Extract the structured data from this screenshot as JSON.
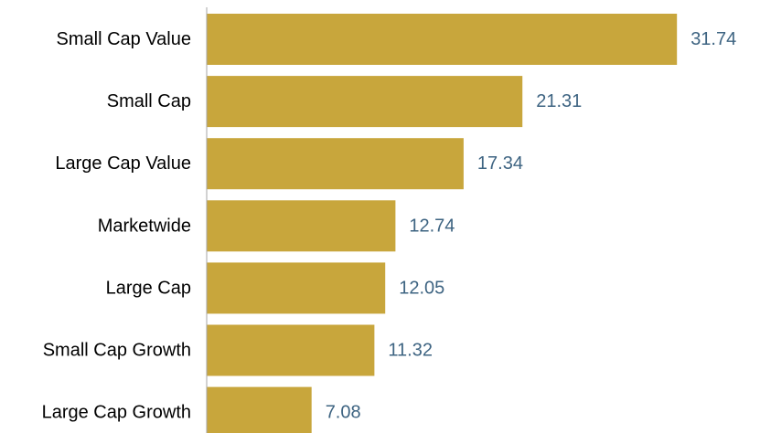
{
  "chart_data": {
    "type": "bar",
    "orientation": "horizontal",
    "categories": [
      "Small Cap Value",
      "Small Cap",
      "Large Cap Value",
      "Marketwide",
      "Large Cap",
      "Small Cap Growth",
      "Large Cap Growth"
    ],
    "values": [
      31.74,
      21.31,
      17.34,
      12.74,
      12.05,
      11.32,
      7.08
    ],
    "value_labels": [
      "31.74",
      "21.31",
      "17.34",
      "12.74",
      "12.05",
      "11.32",
      "7.08"
    ],
    "title": "",
    "xlabel": "",
    "ylabel": "",
    "xlim": [
      0,
      35
    ],
    "grid": false,
    "legend": "none",
    "bar_color": "#c8a63c",
    "value_label_color": "#3e6482",
    "axis_color": "#a6a6a6"
  }
}
